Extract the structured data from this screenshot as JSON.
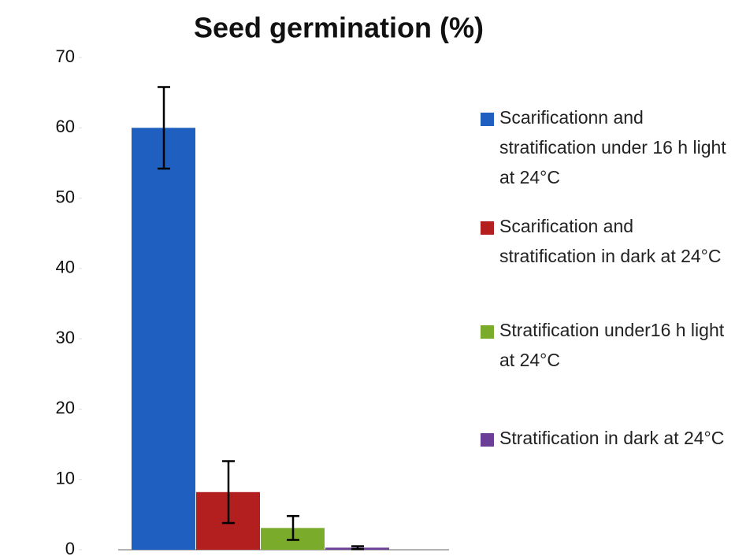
{
  "chart_data": {
    "type": "bar",
    "title": "Seed germination (%)",
    "ylim": [
      0,
      70
    ],
    "yticks": [
      0,
      10,
      20,
      30,
      40,
      50,
      60,
      70
    ],
    "series": [
      {
        "name": "Scarificationn and stratification under 16 h light at 24°C",
        "color": "#1f5fbf",
        "values": [
          60
        ],
        "errors": [
          5.8
        ]
      },
      {
        "name": "Scarification and stratification in dark at 24°C",
        "color": "#b31f1f",
        "values": [
          8.2
        ],
        "errors": [
          4.4
        ]
      },
      {
        "name": "Stratification under16 h light at  24°C",
        "color": "#7aab2b",
        "values": [
          3.1
        ],
        "errors": [
          1.7
        ]
      },
      {
        "name": "Stratification in dark at 24°C",
        "color": "#6b3f98",
        "values": [
          0.3
        ],
        "errors": [
          0.2
        ]
      }
    ]
  }
}
